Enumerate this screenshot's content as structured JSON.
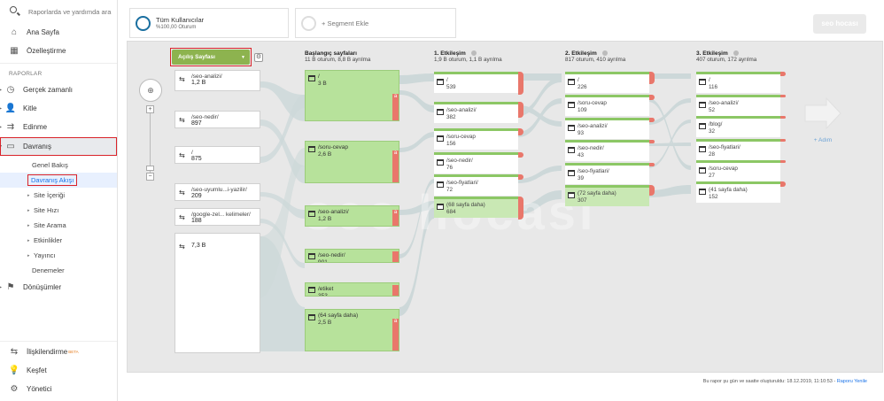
{
  "sidebar": {
    "search_placeholder": "Raporlarda ve yardımda ara",
    "home": "Ana Sayfa",
    "customization": "Özelleştirme",
    "reports_label": "RAPORLAR",
    "realtime": "Gerçek zamanlı",
    "audience": "Kitle",
    "acquisition": "Edinme",
    "behavior": "Davranış",
    "behavior_sub": [
      {
        "label": "Genel Bakış"
      },
      {
        "label": "Davranış Akışı"
      },
      {
        "label": "Site İçeriği"
      },
      {
        "label": "Site Hızı"
      },
      {
        "label": "Site Arama"
      },
      {
        "label": "Etkinlikler"
      },
      {
        "label": "Yayıncı"
      },
      {
        "label": "Denemeler"
      }
    ],
    "conversions": "Dönüşümler",
    "attribution": "İlişkilendirme",
    "attribution_badge": "BETA",
    "discover": "Keşfet",
    "admin": "Yönetici"
  },
  "segments": {
    "all_users_title": "Tüm Kullanıcılar",
    "all_users_sub": "%100,00 Oturum",
    "add_segment": "+ Segment Ekle"
  },
  "flow": {
    "dropdown": "Açılış Sayfası",
    "zoom_in": "+",
    "zoom_out": "−",
    "source_nodes": [
      {
        "label": "/seo-analizi/",
        "value": "1,2 B"
      },
      {
        "label": "/seo-nedir/",
        "value": "897"
      },
      {
        "label": "/",
        "value": "875"
      },
      {
        "label": "/seo-uyumlu...i-yazilir/",
        "value": "209"
      },
      {
        "label": "/google-zel... kelimeler/",
        "value": "188"
      },
      {
        "label": "",
        "value": "7,3 B"
      }
    ],
    "columns": [
      {
        "title": "Başlangıç sayfaları",
        "sub": "11 B oturum, 8,8 B ayrılma"
      },
      {
        "title": "1. Etkileşim",
        "sub": "1,9 B oturum, 1,1 B ayrılma"
      },
      {
        "title": "2. Etkileşim",
        "sub": "817 oturum, 410 ayrılma"
      },
      {
        "title": "3. Etkileşim",
        "sub": "407 oturum, 172 ayrılma"
      }
    ],
    "start_pages": [
      {
        "label": "/",
        "value": "3 B"
      },
      {
        "label": "/soru-cevap",
        "value": "2,6 B"
      },
      {
        "label": "/seo-analizi/",
        "value": "1,2 B"
      },
      {
        "label": "/seo-nedir/",
        "value": "901"
      },
      {
        "label": "/etiket",
        "value": "353"
      },
      {
        "label": "(64 sayfa daha)",
        "value": "2,5 B"
      }
    ],
    "interaction1": [
      {
        "label": "/",
        "value": "539"
      },
      {
        "label": "/seo-analizi/",
        "value": "382"
      },
      {
        "label": "/soru-cevap",
        "value": "156"
      },
      {
        "label": "/seo-nedir/",
        "value": "76"
      },
      {
        "label": "/seo-fiyatlari/",
        "value": "72"
      },
      {
        "label": "(68 sayfa daha)",
        "value": "684"
      }
    ],
    "interaction2": [
      {
        "label": "/",
        "value": "226"
      },
      {
        "label": "/soru-cevap",
        "value": "109"
      },
      {
        "label": "/seo-analizi/",
        "value": "93"
      },
      {
        "label": "/seo-nedir/",
        "value": "43"
      },
      {
        "label": "/seo-fiyatlari/",
        "value": "39"
      },
      {
        "label": "(72 sayfa daha)",
        "value": "307"
      }
    ],
    "interaction3": [
      {
        "label": "/",
        "value": "116"
      },
      {
        "label": "/seo-analizi/",
        "value": "52"
      },
      {
        "label": "/blog/",
        "value": "32"
      },
      {
        "label": "/seo-fiyatlari/",
        "value": "28"
      },
      {
        "label": "/soru-cevap",
        "value": "27"
      },
      {
        "label": "(41 sayfa daha)",
        "value": "152"
      }
    ],
    "add_step": "+ Adım"
  },
  "footer": {
    "text": "Bu rapor şu gün ve saatte oluşturuldu: 18.12.2019, 11:10:53 - ",
    "refresh": "Raporu Yenile"
  },
  "colors": {
    "node_green": "#b7e29b",
    "dropoff_red": "#e9776b",
    "dropdown_green": "#8db34f",
    "highlight_red": "#d9232a"
  }
}
